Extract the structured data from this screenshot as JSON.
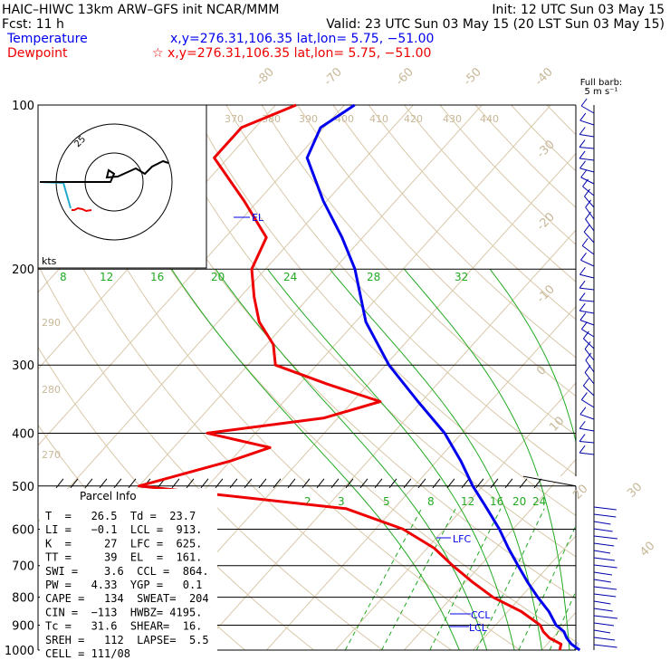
{
  "header": {
    "line1_left": "HAIC–HIWC 13km ARW–GFS init   NCAR/MMM",
    "line1_right": "Init: 12 UTC Sun 03 May 15",
    "line2_left": "Fcst:    11 h",
    "line2_right": "Valid: 23 UTC Sun 03 May 15 (20 LST Sun 03 May 15)",
    "temp_label": "Temperature",
    "temp_info": "x,y=276.31,106.35    lat,lon=  5.75, −51.00",
    "dew_label": "Dewpoint",
    "dew_info": "☆ x,y=276.31,106.35    lat,lon=  5.75, −51.00"
  },
  "barb_header": {
    "line1": "Full barb:",
    "line2": "5 m s⁻¹"
  },
  "hodograph": {
    "speed_label": "25",
    "units": "kts"
  },
  "parcel_info": {
    "title": "Parcel Info",
    "rows": [
      "T  =   26.5  Td =  23.7",
      "LI =   −0.1  LCL =  913.",
      "K  =     27  LFC =  625.",
      "TT =     39  EL  =  161.",
      "SWI =    3.6  CCL =  864.",
      "PW =   4.33  YGP =   0.1",
      "CAPE =   134  SWEAT=  204",
      "CIN =  −113  HWBZ= 4195.",
      "Tc =   31.6  SHEAR=  16.",
      "SREH =   112  LAPSE=  5.5",
      "CELL = 111/08"
    ]
  },
  "chart_data": {
    "type": "line",
    "title": "",
    "y_axis": "pressure (hPa), log scale",
    "pressure_levels": [
      100,
      200,
      300,
      400,
      500,
      600,
      700,
      800,
      900,
      1000
    ],
    "isotherm_labels": [
      -80,
      -70,
      -60,
      -50,
      -40,
      -30,
      -20,
      -10,
      0,
      10,
      20,
      30,
      40
    ],
    "dry_adiabat_labels": [
      370,
      380,
      390,
      400,
      410,
      420,
      430,
      440,
      290,
      280,
      270
    ],
    "moist_adiabat_labels": [
      8,
      12,
      16,
      20,
      24,
      28,
      32
    ],
    "mixing_ratio_labels": [
      2,
      3,
      5,
      8,
      12,
      16,
      20,
      24
    ],
    "levels_marked": [
      "EL",
      "LFC",
      "CCL",
      "LCL"
    ],
    "series": [
      {
        "name": "Temperature",
        "color": "#0000ee",
        "points": [
          [
            1000,
            25.5
          ],
          [
            975,
            23.5
          ],
          [
            950,
            22.0
          ],
          [
            925,
            20.8
          ],
          [
            900,
            18.8
          ],
          [
            850,
            16.0
          ],
          [
            800,
            12.5
          ],
          [
            750,
            9.0
          ],
          [
            700,
            5.5
          ],
          [
            650,
            1.8
          ],
          [
            600,
            -2.0
          ],
          [
            550,
            -6.5
          ],
          [
            500,
            -11.5
          ],
          [
            450,
            -16.5
          ],
          [
            400,
            -22.5
          ],
          [
            350,
            -30.5
          ],
          [
            300,
            -39.5
          ],
          [
            250,
            -48.5
          ],
          [
            200,
            -57.0
          ],
          [
            175,
            -63.0
          ],
          [
            150,
            -70.5
          ],
          [
            125,
            -78.5
          ],
          [
            110,
            -80.5
          ],
          [
            100,
            -78.5
          ]
        ]
      },
      {
        "name": "Dewpoint",
        "color": "#ee0000",
        "points": [
          [
            1000,
            22.6
          ],
          [
            975,
            22.0
          ],
          [
            950,
            19.5
          ],
          [
            925,
            17.8
          ],
          [
            900,
            16.5
          ],
          [
            850,
            12.0
          ],
          [
            800,
            6.0
          ],
          [
            750,
            1.0
          ],
          [
            700,
            -4.0
          ],
          [
            650,
            -9.0
          ],
          [
            600,
            -16.0
          ],
          [
            550,
            -27.0
          ],
          [
            500,
            -60.0
          ],
          [
            450,
            -50.0
          ],
          [
            425,
            -46.0
          ],
          [
            400,
            -57.0
          ],
          [
            375,
            -42.0
          ],
          [
            350,
            -36.0
          ],
          [
            325,
            -46.0
          ],
          [
            300,
            -56.0
          ],
          [
            275,
            -59.0
          ],
          [
            250,
            -64.0
          ],
          [
            225,
            -68.0
          ],
          [
            200,
            -72.0
          ],
          [
            175,
            -74.0
          ],
          [
            150,
            -82.0
          ],
          [
            125,
            -92.0
          ],
          [
            110,
            -92.0
          ],
          [
            100,
            -87.0
          ]
        ]
      }
    ]
  }
}
